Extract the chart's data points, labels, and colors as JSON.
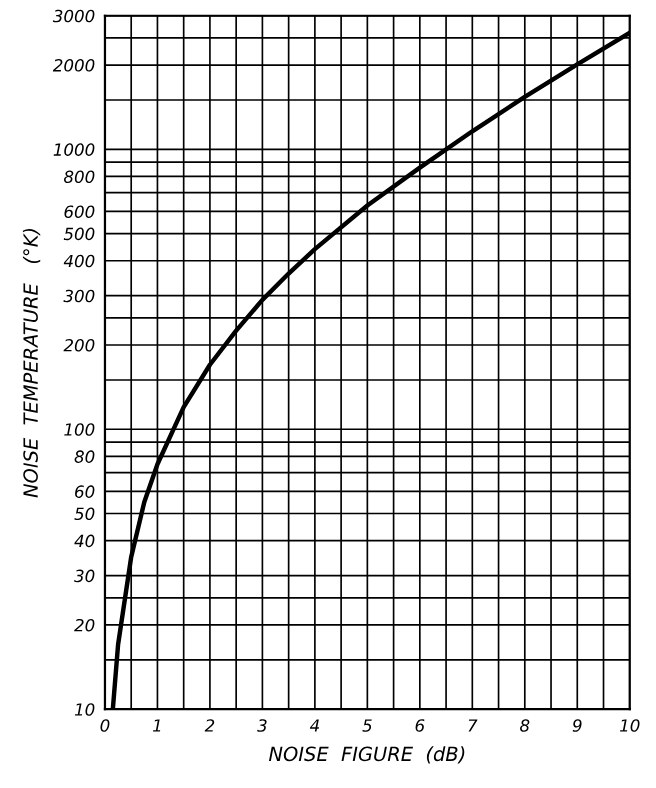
{
  "chart_data": {
    "type": "line",
    "xlabel": "NOISE  FIGURE  (dB)",
    "ylabel": "NOISE  TEMPERATURE   (°K)",
    "x": [
      0.15,
      0.25,
      0.5,
      0.75,
      1,
      1.5,
      2,
      2.5,
      3,
      3.5,
      4,
      5,
      6,
      7,
      8,
      9,
      10
    ],
    "series": [
      {
        "color": "#000000",
        "values": [
          10,
          17,
          35,
          55,
          75,
          120,
          170,
          225,
          290,
          360,
          440,
          630,
          860,
          1160,
          1540,
          2010,
          2610
        ]
      }
    ],
    "log": "y",
    "xlim": [
      0,
      10
    ],
    "ylim": [
      10,
      3000
    ],
    "xticks": [
      0,
      {
        "value": 0.5,
        "label": null
      },
      1,
      {
        "value": 1.5,
        "label": null
      },
      2,
      {
        "value": 2.5,
        "label": null
      },
      3,
      {
        "value": 3.5,
        "label": null
      },
      4,
      {
        "value": 4.5,
        "label": null
      },
      5,
      {
        "value": 5.5,
        "label": null
      },
      6,
      {
        "value": 6.5,
        "label": null
      },
      7,
      {
        "value": 7.5,
        "label": null
      },
      8,
      {
        "value": 8.5,
        "label": null
      },
      9,
      {
        "value": 9.5,
        "label": null
      },
      10
    ],
    "yticks": [
      10,
      {
        "value": 15,
        "label": null
      },
      20,
      {
        "value": 25,
        "label": null
      },
      30,
      40,
      50,
      60,
      {
        "value": 70,
        "label": null
      },
      80,
      {
        "value": 90,
        "label": null
      },
      100,
      {
        "value": 150,
        "label": null
      },
      200,
      {
        "value": 250,
        "label": null
      },
      300,
      400,
      500,
      600,
      {
        "value": 700,
        "label": null
      },
      800,
      {
        "value": 900,
        "label": null
      },
      1000,
      {
        "value": 1500,
        "label": null
      },
      2000,
      {
        "value": 2500,
        "label": null
      },
      3000
    ],
    "grid": true,
    "line_style": "solid",
    "marker": "none"
  }
}
